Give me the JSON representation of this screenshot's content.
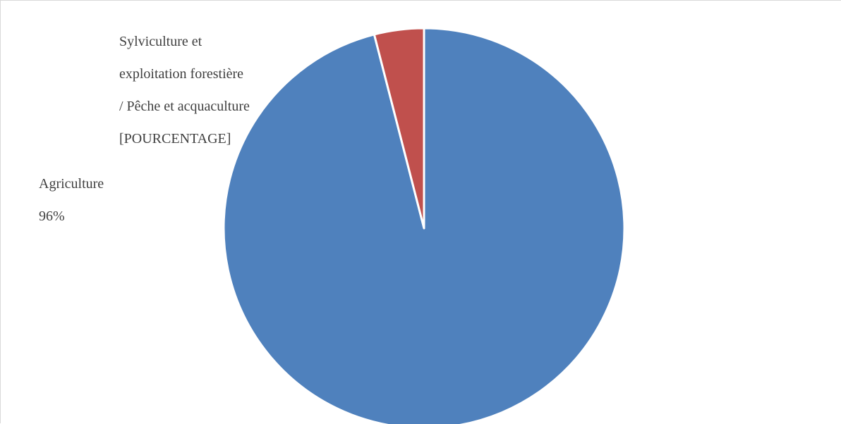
{
  "chart_data": {
    "type": "pie",
    "slices": [
      {
        "label_lines": [
          "Agriculture"
        ],
        "value_text": "96%",
        "value": 96,
        "color": "#4f81bd"
      },
      {
        "label_lines": [
          "Sylviculture et",
          "exploitation forestière",
          "/ Pêche et acquaculture"
        ],
        "value_text": "[POURCENTAGE]",
        "value": 4,
        "color": "#c0504d"
      }
    ],
    "start_angle_deg": 0,
    "direction": "clockwise",
    "legend": "none"
  }
}
